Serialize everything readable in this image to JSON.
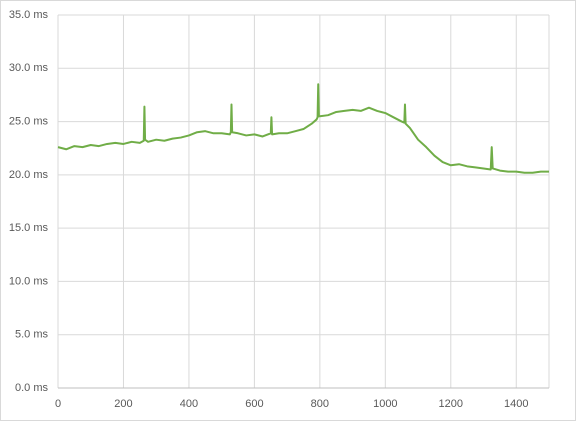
{
  "chart_data": {
    "type": "line",
    "x": [
      0,
      25,
      50,
      75,
      100,
      125,
      150,
      175,
      200,
      225,
      250,
      262,
      264,
      266,
      275,
      300,
      325,
      350,
      375,
      400,
      425,
      450,
      475,
      500,
      525,
      528,
      530,
      532,
      550,
      575,
      600,
      625,
      650,
      652,
      654,
      675,
      700,
      725,
      750,
      775,
      790,
      793,
      795,
      797,
      800,
      825,
      850,
      875,
      900,
      925,
      950,
      975,
      1000,
      1025,
      1050,
      1058,
      1060,
      1062,
      1075,
      1100,
      1125,
      1150,
      1175,
      1200,
      1225,
      1250,
      1275,
      1300,
      1322,
      1325,
      1328,
      1350,
      1375,
      1400,
      1425,
      1450,
      1475,
      1500
    ],
    "series": [
      {
        "color": "#70ad47",
        "values": [
          22.6,
          22.4,
          22.7,
          22.6,
          22.8,
          22.7,
          22.9,
          23.0,
          22.9,
          23.1,
          23.0,
          23.2,
          26.4,
          23.3,
          23.1,
          23.3,
          23.2,
          23.4,
          23.5,
          23.7,
          24.0,
          24.1,
          23.9,
          23.9,
          23.8,
          24.0,
          26.6,
          24.0,
          23.9,
          23.7,
          23.8,
          23.6,
          23.9,
          25.4,
          23.8,
          23.9,
          23.9,
          24.1,
          24.3,
          24.8,
          25.2,
          25.4,
          28.5,
          25.5,
          25.5,
          25.6,
          25.9,
          26.0,
          26.1,
          26.0,
          26.3,
          26.0,
          25.8,
          25.4,
          25.0,
          24.9,
          26.6,
          24.8,
          24.4,
          23.3,
          22.6,
          21.8,
          21.2,
          20.9,
          21.0,
          20.8,
          20.7,
          20.6,
          20.5,
          22.6,
          20.6,
          20.4,
          20.3,
          20.3,
          20.2,
          20.2,
          20.3,
          20.3
        ]
      }
    ],
    "xlim": [
      0,
      1500
    ],
    "xticks": [
      0,
      200,
      400,
      600,
      800,
      1000,
      1200,
      1400
    ],
    "ylim": [
      0,
      35
    ],
    "yticks": [
      {
        "value": 0,
        "label": "0.0 ms"
      },
      {
        "value": 5,
        "label": "5.0 ms"
      },
      {
        "value": 10,
        "label": "10.0 ms"
      },
      {
        "value": 15,
        "label": "15.0 ms"
      },
      {
        "value": 20,
        "label": "20.0 ms"
      },
      {
        "value": 25,
        "label": "25.0 ms"
      },
      {
        "value": 30,
        "label": "30.0 ms"
      },
      {
        "value": 35,
        "label": "35.0 ms"
      }
    ],
    "grid": true
  }
}
